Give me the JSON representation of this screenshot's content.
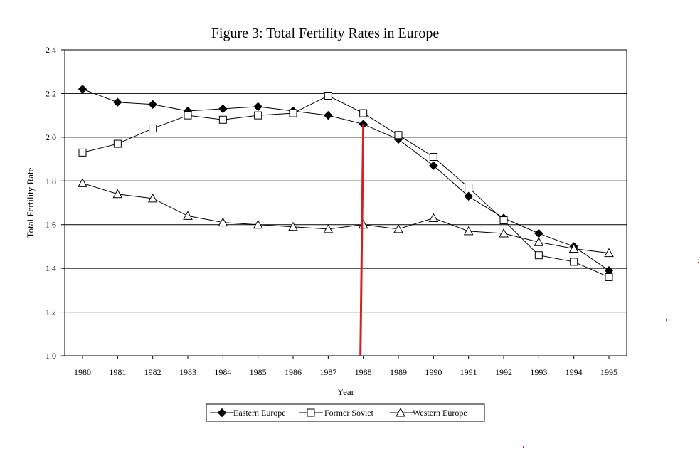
{
  "chart_data": {
    "type": "line",
    "title": "Figure 3:  Total Fertility Rates in Europe",
    "xlabel": "Year",
    "ylabel": "Total Fertility Rate",
    "categories": [
      "1980",
      "1981",
      "1982",
      "1983",
      "1984",
      "1985",
      "1986",
      "1987",
      "1988",
      "1989",
      "1990",
      "1991",
      "1992",
      "1993",
      "1994",
      "1995"
    ],
    "ylim": [
      1.0,
      2.4
    ],
    "yticks": [
      "1.0",
      "1.2",
      "1.4",
      "1.6",
      "1.8",
      "2.0",
      "2.2",
      "2.4"
    ],
    "grid": true,
    "series": [
      {
        "name": "Eastern Europe",
        "marker": "filled-diamond",
        "values": [
          2.22,
          2.16,
          2.15,
          2.12,
          2.13,
          2.14,
          2.12,
          2.1,
          2.06,
          1.99,
          1.87,
          1.73,
          1.63,
          1.56,
          1.5,
          1.39
        ]
      },
      {
        "name": "Former Soviet",
        "marker": "open-square",
        "values": [
          1.93,
          1.97,
          2.04,
          2.1,
          2.08,
          2.1,
          2.11,
          2.19,
          2.11,
          2.01,
          1.91,
          1.77,
          1.62,
          1.46,
          1.43,
          1.36
        ]
      },
      {
        "name": "Western Europe",
        "marker": "open-triangle",
        "values": [
          1.79,
          1.74,
          1.72,
          1.64,
          1.61,
          1.6,
          1.59,
          1.58,
          1.6,
          1.58,
          1.63,
          1.57,
          1.56,
          1.52,
          1.49,
          1.47
        ]
      }
    ],
    "annotation": {
      "type": "vertical-line",
      "x": "1988",
      "from_y": 1.0,
      "to_y": 2.06,
      "color": "#d42020"
    },
    "legend_position": "bottom-center"
  },
  "colors": {
    "line": "#000000",
    "grid": "#000000",
    "annotation": "#d42020"
  }
}
